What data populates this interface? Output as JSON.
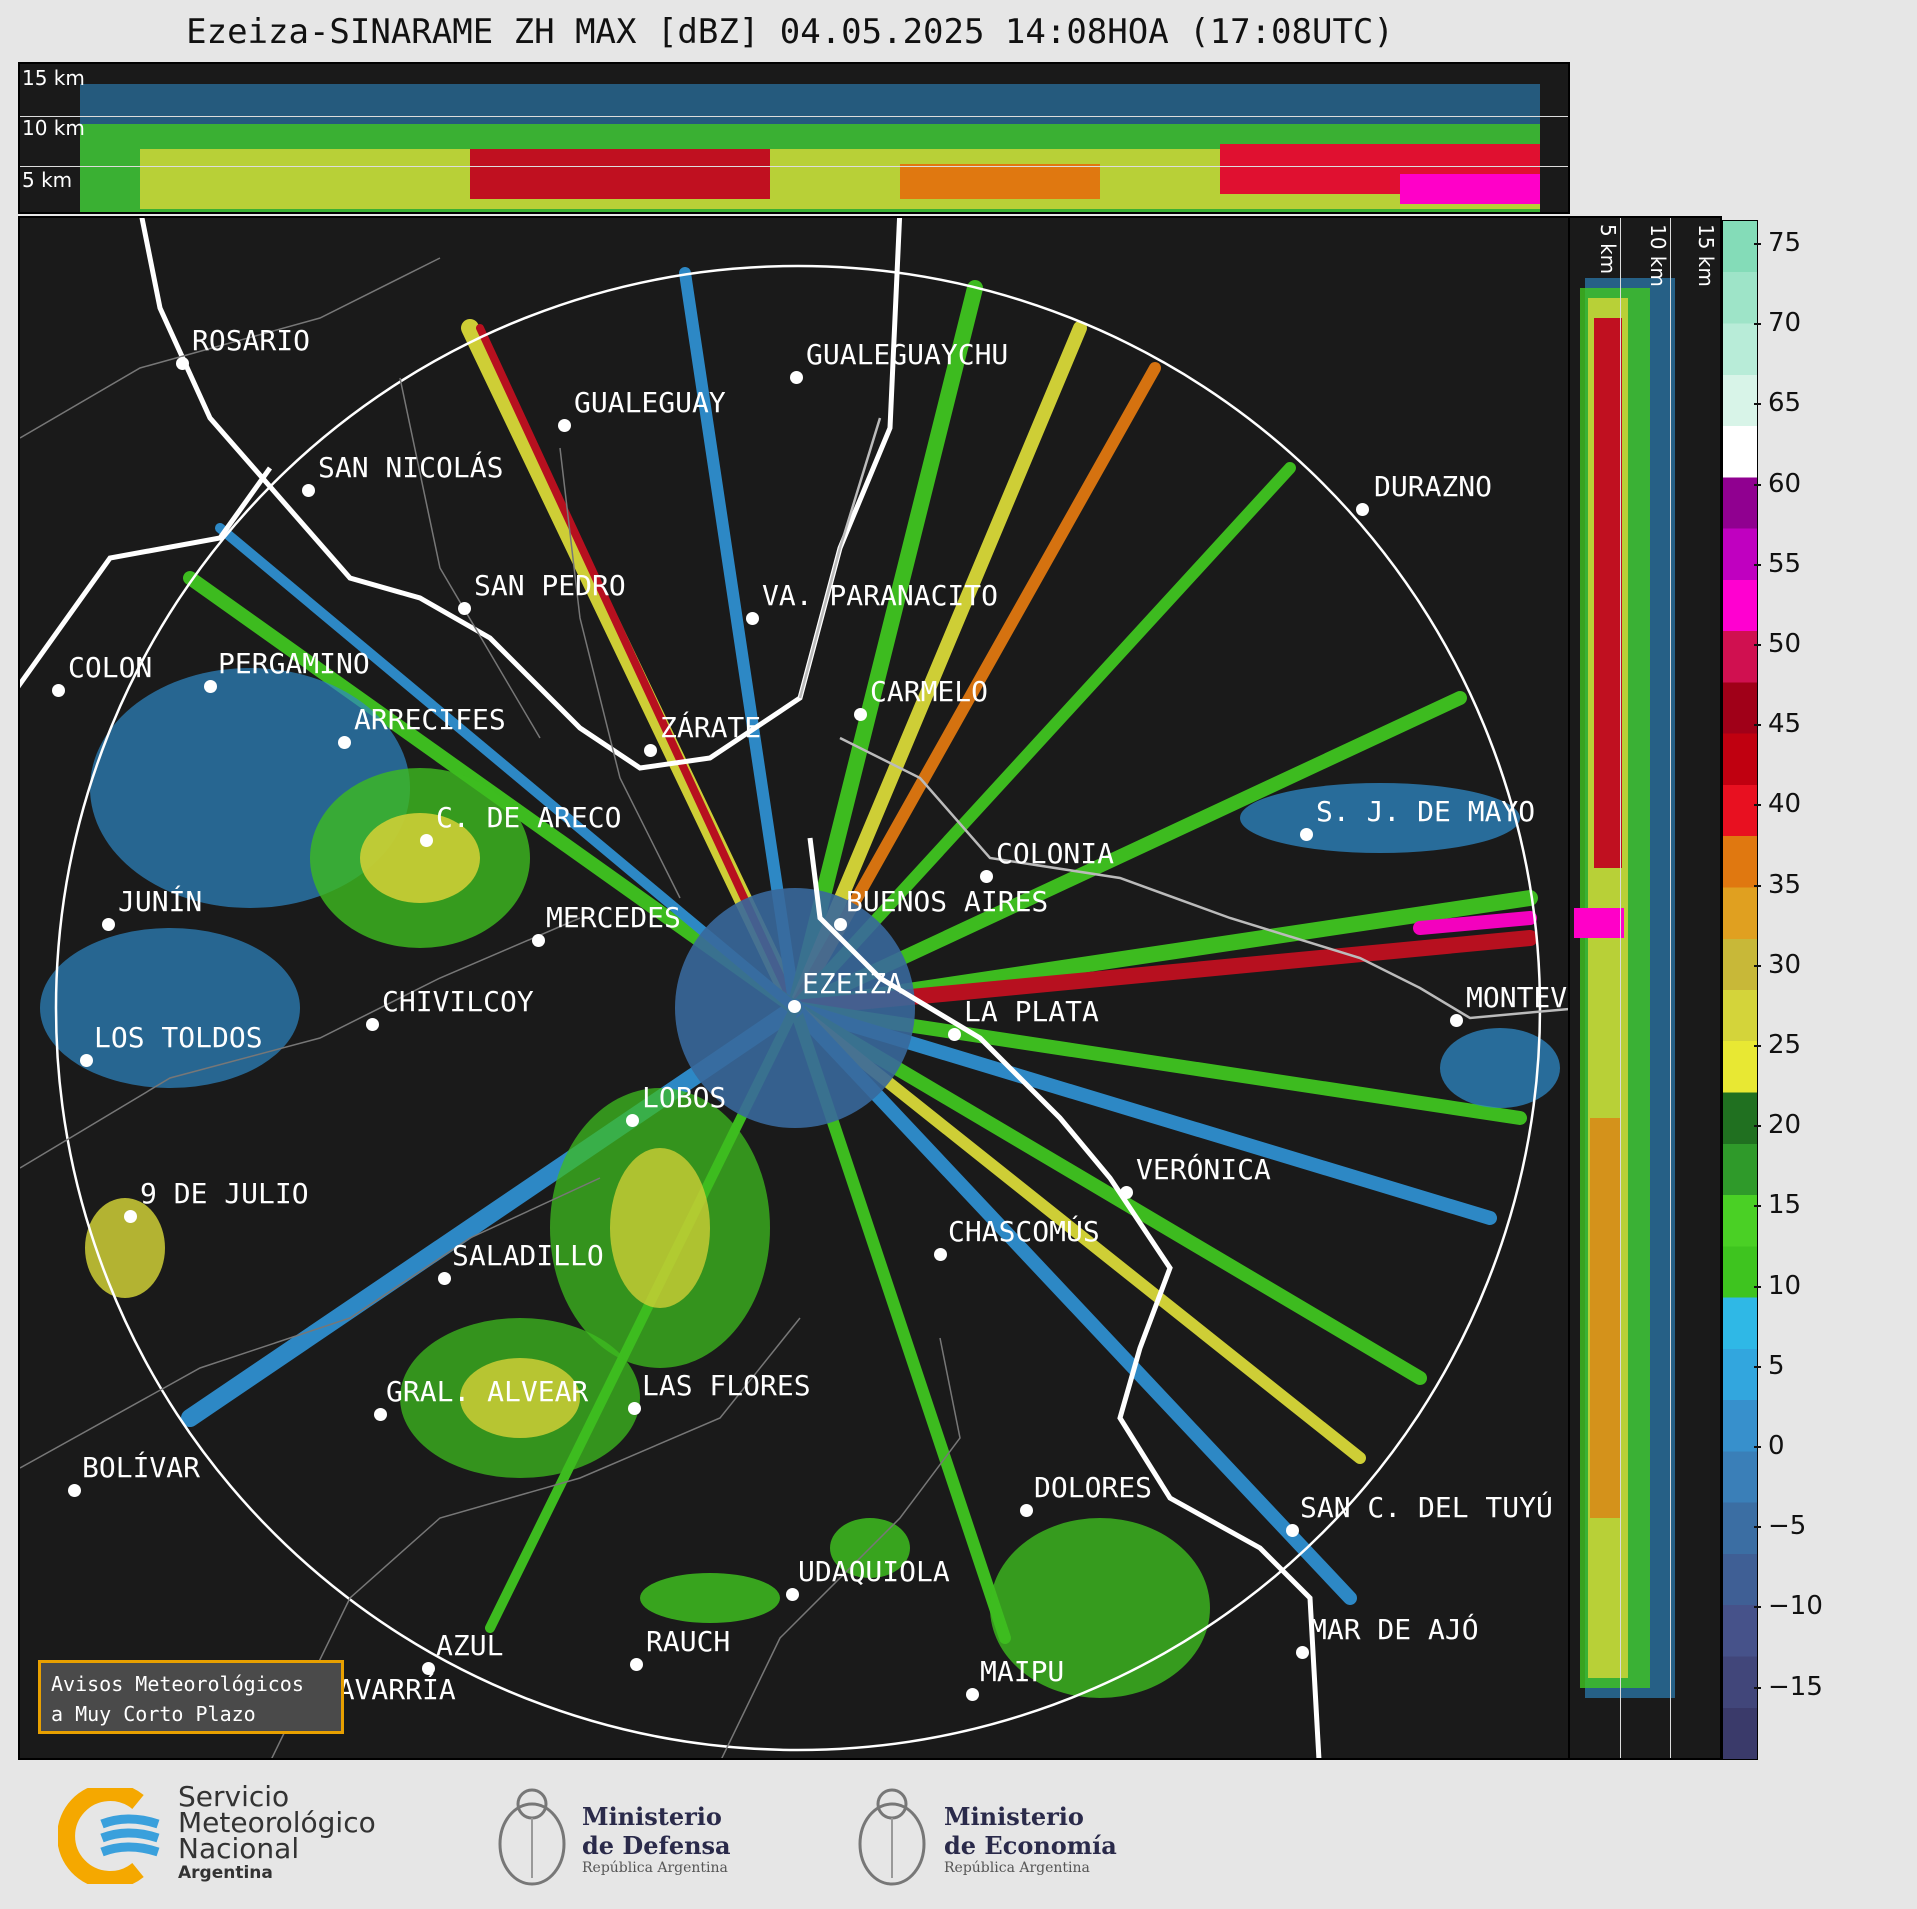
{
  "title": "Ezeiza-SINARAME ZH MAX [dBZ] 04.05.2025 14:08HOA (17:08UTC)",
  "top_panel": {
    "height_labels": [
      "15 km",
      "10 km",
      "5 km"
    ]
  },
  "side_panel": {
    "height_labels": [
      "5 km",
      "10 km",
      "15 km"
    ]
  },
  "colorbar": {
    "ticks": [
      "75",
      "70",
      "65",
      "60",
      "55",
      "50",
      "45",
      "40",
      "35",
      "30",
      "25",
      "20",
      "15",
      "10",
      "5",
      "0",
      "−5",
      "−10",
      "−15"
    ],
    "colors": [
      "#3a3a6a",
      "#41467a",
      "#46528a",
      "#3f5f95",
      "#3b6ea3",
      "#3a7fb8",
      "#3790cc",
      "#32a6de",
      "#2fb8e6",
      "#3ec41f",
      "#4ad025",
      "#2f9a2a",
      "#207020",
      "#e8e833",
      "#d4d43a",
      "#c8b838",
      "#e0a020",
      "#e07810",
      "#e81020",
      "#c00010",
      "#a00018",
      "#d01050",
      "#ff00d0",
      "#c000c0",
      "#900090",
      "#ffffff",
      "#d8f4e8",
      "#b8ecd8",
      "#9ee4c8",
      "#84dcb8"
    ]
  },
  "cities": [
    {
      "name": "ROSARIO"
    },
    {
      "name": "GUALEGUAYCHU"
    },
    {
      "name": "GUALEGUAY"
    },
    {
      "name": "SAN NICOLÁS"
    },
    {
      "name": "DURAZNO"
    },
    {
      "name": "SAN PEDRO"
    },
    {
      "name": "VA. PARANACITO"
    },
    {
      "name": "COLON"
    },
    {
      "name": "PERGAMINO"
    },
    {
      "name": "CARMELO"
    },
    {
      "name": "ARRECIFES"
    },
    {
      "name": "ZÁRATE"
    },
    {
      "name": "S. J. DE MAYO"
    },
    {
      "name": "C. DE ARECO"
    },
    {
      "name": "COLONIA"
    },
    {
      "name": "JUNÍN"
    },
    {
      "name": "BUENOS AIRES"
    },
    {
      "name": "MERCEDES"
    },
    {
      "name": "EZEIZA"
    },
    {
      "name": "MONTEVIDEO"
    },
    {
      "name": "CHIVILCOY"
    },
    {
      "name": "LA PLATA"
    },
    {
      "name": "LOS TOLDOS"
    },
    {
      "name": "LOBOS"
    },
    {
      "name": "VERÓNICA"
    },
    {
      "name": "9 DE JULIO"
    },
    {
      "name": "CHASCOMÚS"
    },
    {
      "name": "SALADILLO"
    },
    {
      "name": "LAS FLORES"
    },
    {
      "name": "GRAL. ALVEAR"
    },
    {
      "name": "BOLÍVAR"
    },
    {
      "name": "DOLORES"
    },
    {
      "name": "SAN C. DEL TUYÚ"
    },
    {
      "name": "UDAQUIOLA"
    },
    {
      "name": "AZUL"
    },
    {
      "name": "RAUCH"
    },
    {
      "name": "MAR DE AJÓ"
    },
    {
      "name": "OLAVARRÍA"
    },
    {
      "name": "MAIPU"
    }
  ],
  "avisos": {
    "line1": "Avisos Meteorológicos",
    "line2": "a Muy Corto Plazo"
  },
  "logos": {
    "smn": {
      "line1": "Servicio",
      "line2": "Meteorológico",
      "line3": "Nacional",
      "line4": "Argentina"
    },
    "defensa": {
      "line1": "Ministerio",
      "line2": "de Defensa",
      "line3": "República Argentina"
    },
    "economia": {
      "line1": "Ministerio",
      "line2": "de Economía",
      "line3": "República Argentina"
    }
  }
}
